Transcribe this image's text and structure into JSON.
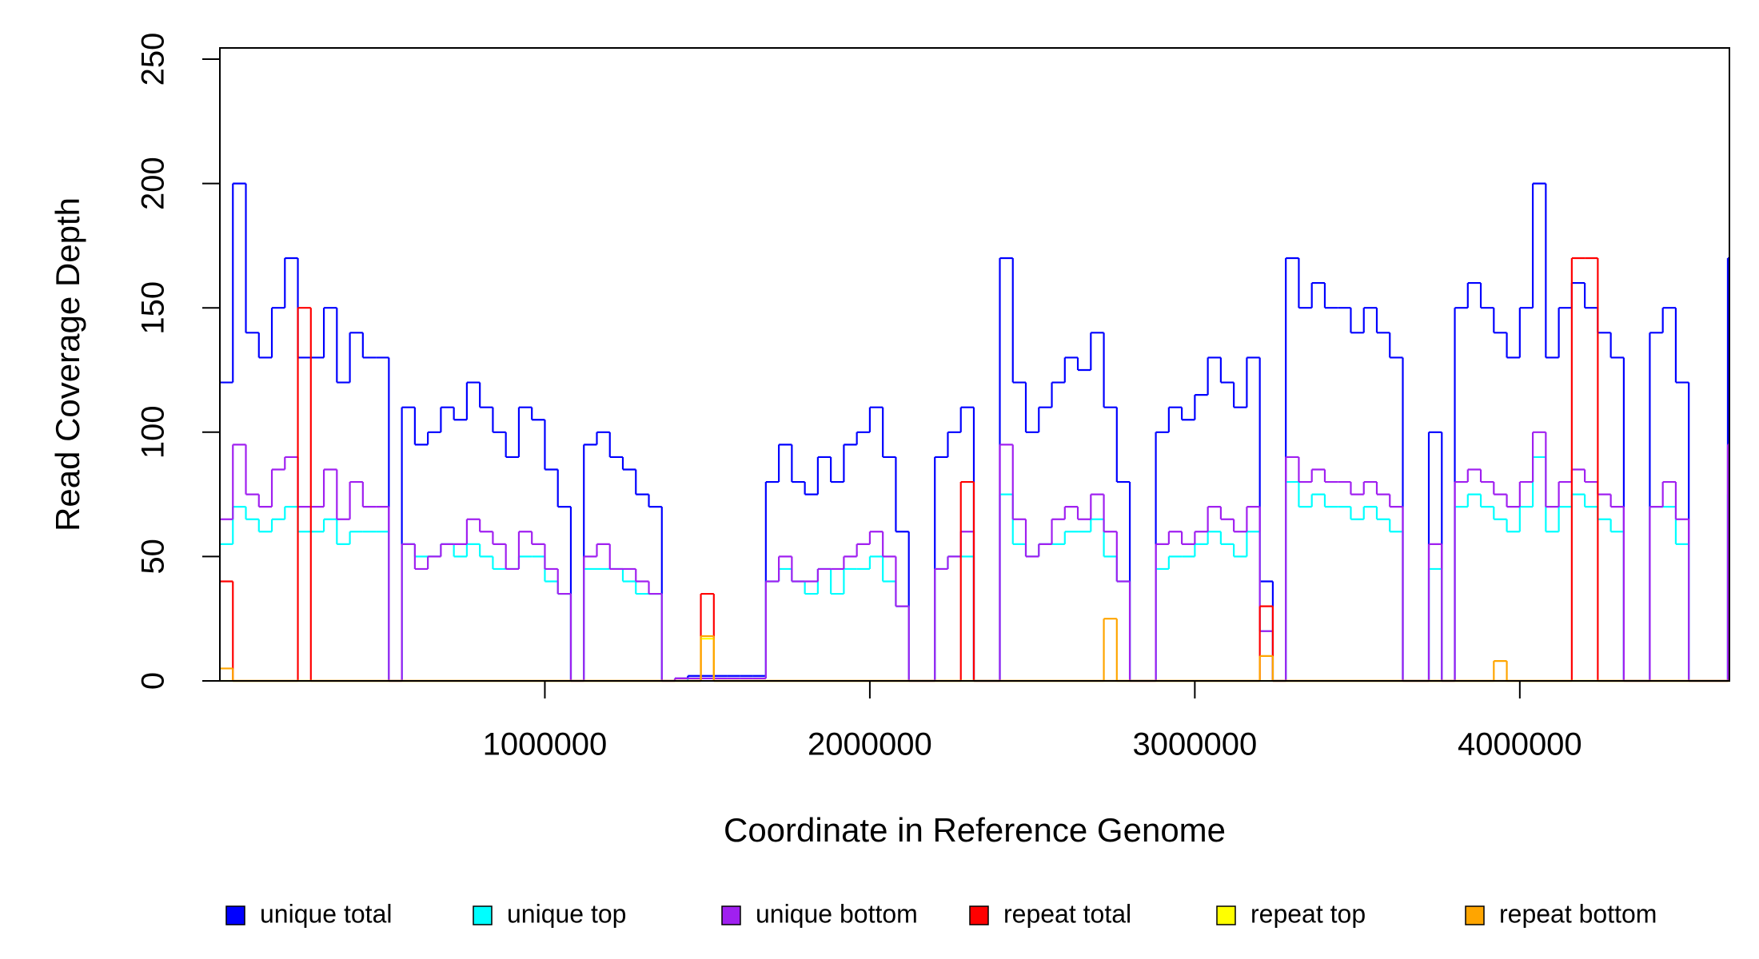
{
  "chart_data": {
    "type": "step",
    "xlabel": "Coordinate in Reference Genome",
    "ylabel": "Read Coverage Depth",
    "xlim": [
      0,
      4645000
    ],
    "ylim": [
      0,
      254.5
    ],
    "xticks": [
      1000000,
      2000000,
      3000000,
      4000000
    ],
    "yticks": [
      0,
      50,
      100,
      150,
      200,
      250
    ],
    "x": [
      0,
      40000,
      80000,
      120000,
      160000,
      200000,
      240000,
      280000,
      320000,
      360000,
      400000,
      440000,
      480000,
      520000,
      560000,
      600000,
      640000,
      680000,
      720000,
      760000,
      800000,
      840000,
      880000,
      920000,
      960000,
      1000000,
      1040000,
      1080000,
      1120000,
      1160000,
      1200000,
      1240000,
      1280000,
      1320000,
      1360000,
      1400000,
      1440000,
      1480000,
      1520000,
      1560000,
      1600000,
      1640000,
      1680000,
      1720000,
      1760000,
      1800000,
      1840000,
      1880000,
      1920000,
      1960000,
      2000000,
      2040000,
      2080000,
      2120000,
      2160000,
      2200000,
      2240000,
      2280000,
      2320000,
      2360000,
      2400000,
      2440000,
      2480000,
      2520000,
      2560000,
      2600000,
      2640000,
      2680000,
      2720000,
      2760000,
      2800000,
      2840000,
      2880000,
      2920000,
      2960000,
      3000000,
      3040000,
      3080000,
      3120000,
      3160000,
      3200000,
      3240000,
      3280000,
      3320000,
      3360000,
      3400000,
      3440000,
      3480000,
      3520000,
      3560000,
      3600000,
      3640000,
      3680000,
      3720000,
      3760000,
      3800000,
      3840000,
      3880000,
      3920000,
      3960000,
      4000000,
      4040000,
      4080000,
      4120000,
      4160000,
      4200000,
      4240000,
      4280000,
      4320000,
      4360000,
      4400000,
      4440000,
      4480000,
      4520000,
      4560000,
      4600000,
      4640000
    ],
    "series": [
      {
        "name": "unique total",
        "color": "#0000ff",
        "values": [
          120,
          200,
          140,
          130,
          150,
          170,
          130,
          130,
          150,
          120,
          140,
          130,
          130,
          0,
          110,
          95,
          100,
          110,
          105,
          120,
          110,
          100,
          90,
          110,
          105,
          85,
          70,
          0,
          95,
          100,
          90,
          85,
          75,
          70,
          0,
          1,
          2,
          2,
          2,
          2,
          2,
          2,
          80,
          95,
          80,
          75,
          90,
          80,
          95,
          100,
          110,
          90,
          60,
          0,
          0,
          90,
          100,
          110,
          0,
          0,
          170,
          120,
          100,
          110,
          120,
          130,
          125,
          140,
          110,
          80,
          0,
          0,
          100,
          110,
          105,
          115,
          130,
          120,
          110,
          130,
          40,
          0,
          170,
          150,
          160,
          150,
          150,
          140,
          150,
          140,
          130,
          0,
          0,
          100,
          0,
          150,
          160,
          150,
          140,
          130,
          150,
          200,
          130,
          150,
          160,
          150,
          140,
          130,
          0,
          0,
          140,
          150,
          120,
          0,
          0,
          0,
          170
        ]
      },
      {
        "name": "unique top",
        "color": "#00ffff",
        "values": [
          55,
          70,
          65,
          60,
          65,
          70,
          60,
          60,
          65,
          55,
          60,
          60,
          60,
          0,
          55,
          50,
          50,
          55,
          50,
          55,
          50,
          45,
          45,
          50,
          50,
          40,
          35,
          0,
          45,
          45,
          45,
          40,
          35,
          35,
          0,
          0,
          1,
          1,
          1,
          1,
          1,
          1,
          40,
          45,
          40,
          35,
          45,
          35,
          45,
          45,
          50,
          40,
          30,
          0,
          0,
          45,
          50,
          50,
          0,
          0,
          75,
          55,
          50,
          55,
          55,
          60,
          60,
          65,
          50,
          40,
          0,
          0,
          45,
          50,
          50,
          55,
          60,
          55,
          50,
          60,
          20,
          0,
          80,
          70,
          75,
          70,
          70,
          65,
          70,
          65,
          60,
          0,
          0,
          45,
          0,
          70,
          75,
          70,
          65,
          60,
          70,
          90,
          60,
          70,
          75,
          70,
          65,
          60,
          0,
          0,
          70,
          70,
          55,
          0,
          0,
          0,
          75
        ]
      },
      {
        "name": "unique bottom",
        "color": "#a020f0",
        "values": [
          65,
          95,
          75,
          70,
          85,
          90,
          70,
          70,
          85,
          65,
          80,
          70,
          70,
          0,
          55,
          45,
          50,
          55,
          55,
          65,
          60,
          55,
          45,
          60,
          55,
          45,
          35,
          0,
          50,
          55,
          45,
          45,
          40,
          35,
          0,
          1,
          1,
          1,
          1,
          1,
          1,
          1,
          40,
          50,
          40,
          40,
          45,
          45,
          50,
          55,
          60,
          50,
          30,
          0,
          0,
          45,
          50,
          60,
          0,
          0,
          95,
          65,
          50,
          55,
          65,
          70,
          65,
          75,
          60,
          40,
          0,
          0,
          55,
          60,
          55,
          60,
          70,
          65,
          60,
          70,
          20,
          0,
          90,
          80,
          85,
          80,
          80,
          75,
          80,
          75,
          70,
          0,
          0,
          55,
          0,
          80,
          85,
          80,
          75,
          70,
          80,
          100,
          70,
          80,
          85,
          80,
          75,
          70,
          0,
          0,
          70,
          80,
          65,
          0,
          0,
          0,
          95
        ]
      },
      {
        "name": "repeat total",
        "color": "#ff0000",
        "values": [
          40,
          0,
          0,
          0,
          0,
          0,
          150,
          0,
          0,
          0,
          0,
          0,
          0,
          0,
          0,
          0,
          0,
          0,
          0,
          0,
          0,
          0,
          0,
          0,
          0,
          0,
          0,
          0,
          0,
          0,
          0,
          0,
          0,
          0,
          0,
          0,
          0,
          35,
          0,
          0,
          0,
          0,
          0,
          0,
          0,
          0,
          0,
          0,
          0,
          0,
          0,
          0,
          0,
          0,
          0,
          0,
          0,
          80,
          0,
          0,
          0,
          0,
          0,
          0,
          0,
          0,
          0,
          0,
          0,
          0,
          0,
          0,
          0,
          0,
          0,
          0,
          0,
          0,
          0,
          0,
          30,
          0,
          0,
          0,
          0,
          0,
          0,
          0,
          0,
          0,
          0,
          0,
          0,
          0,
          0,
          0,
          0,
          0,
          0,
          0,
          0,
          0,
          0,
          0,
          170,
          170,
          0,
          0,
          0,
          0,
          0,
          0,
          0,
          0,
          0,
          0,
          0
        ]
      },
      {
        "name": "repeat top",
        "color": "#ffff00",
        "values": [
          0,
          0,
          0,
          0,
          0,
          0,
          0,
          0,
          0,
          0,
          0,
          0,
          0,
          0,
          0,
          0,
          0,
          0,
          0,
          0,
          0,
          0,
          0,
          0,
          0,
          0,
          0,
          0,
          0,
          0,
          0,
          0,
          0,
          0,
          0,
          0,
          0,
          17,
          0,
          0,
          0,
          0,
          0,
          0,
          0,
          0,
          0,
          0,
          0,
          0,
          0,
          0,
          0,
          0,
          0,
          0,
          0,
          0,
          0,
          0,
          0,
          0,
          0,
          0,
          0,
          0,
          0,
          0,
          0,
          0,
          0,
          0,
          0,
          0,
          0,
          0,
          0,
          0,
          0,
          0,
          0,
          0,
          0,
          0,
          0,
          0,
          0,
          0,
          0,
          0,
          0,
          0,
          0,
          0,
          0,
          0,
          0,
          0,
          0,
          0,
          0,
          0,
          0,
          0,
          0,
          0,
          0,
          0,
          0,
          0,
          0,
          0,
          0,
          0,
          0,
          0,
          0
        ]
      },
      {
        "name": "repeat bottom",
        "color": "#ffa500",
        "values": [
          5,
          0,
          0,
          0,
          0,
          0,
          0,
          0,
          0,
          0,
          0,
          0,
          0,
          0,
          0,
          0,
          0,
          0,
          0,
          0,
          0,
          0,
          0,
          0,
          0,
          0,
          0,
          0,
          0,
          0,
          0,
          0,
          0,
          0,
          0,
          0,
          0,
          18,
          0,
          0,
          0,
          0,
          0,
          0,
          0,
          0,
          0,
          0,
          0,
          0,
          0,
          0,
          0,
          0,
          0,
          0,
          0,
          0,
          0,
          0,
          0,
          0,
          0,
          0,
          0,
          0,
          0,
          0,
          25,
          0,
          0,
          0,
          0,
          0,
          0,
          0,
          0,
          0,
          0,
          0,
          10,
          0,
          0,
          0,
          0,
          0,
          0,
          0,
          0,
          0,
          0,
          0,
          0,
          0,
          0,
          0,
          0,
          0,
          8,
          0,
          0,
          0,
          0,
          0,
          0,
          0,
          0,
          0,
          0,
          0,
          0,
          0,
          0,
          0,
          0,
          0,
          0
        ]
      }
    ],
    "legend": "bottom"
  }
}
